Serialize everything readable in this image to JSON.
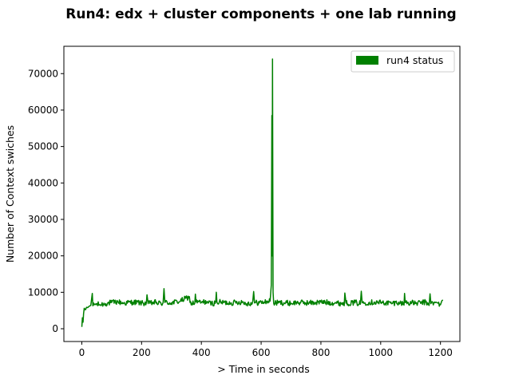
{
  "chart_data": {
    "type": "line",
    "title": "Run4: edx + cluster components + one lab running",
    "xlabel": "> Time  in seconds",
    "ylabel": "Number of Context swiches",
    "xlim": [
      -60,
      1265
    ],
    "ylim": [
      -3500,
      77500
    ],
    "xticks": [
      0,
      200,
      400,
      600,
      800,
      1000,
      1200
    ],
    "yticks": [
      0,
      10000,
      20000,
      30000,
      40000,
      50000,
      60000,
      70000
    ],
    "grid": false,
    "legend_position": "top-right",
    "series": [
      {
        "name": "run4 status",
        "color": "#008000",
        "baseline": 7000,
        "x_range": [
          0,
          1208
        ],
        "points": [
          [
            0,
            500
          ],
          [
            2,
            3000
          ],
          [
            4,
            1800
          ],
          [
            6,
            4200
          ],
          [
            8,
            5600
          ],
          [
            12,
            5200
          ],
          [
            16,
            5900
          ],
          [
            20,
            5800
          ],
          [
            25,
            6200
          ],
          [
            30,
            6400
          ],
          [
            35,
            9700
          ],
          [
            37,
            6300
          ],
          [
            45,
            6800
          ],
          [
            60,
            6600
          ],
          [
            80,
            6900
          ],
          [
            100,
            7200
          ],
          [
            120,
            7400
          ],
          [
            140,
            7000
          ],
          [
            170,
            7300
          ],
          [
            200,
            7100
          ],
          [
            218,
            9300
          ],
          [
            222,
            6900
          ],
          [
            250,
            7300
          ],
          [
            275,
            11000
          ],
          [
            278,
            7200
          ],
          [
            300,
            7100
          ],
          [
            330,
            7600
          ],
          [
            360,
            8800
          ],
          [
            362,
            7200
          ],
          [
            380,
            9500
          ],
          [
            382,
            7400
          ],
          [
            400,
            7200
          ],
          [
            420,
            7500
          ],
          [
            450,
            10000
          ],
          [
            452,
            7300
          ],
          [
            500,
            7100
          ],
          [
            540,
            7400
          ],
          [
            575,
            10200
          ],
          [
            578,
            7100
          ],
          [
            610,
            7300
          ],
          [
            630,
            7600
          ],
          [
            634,
            12000
          ],
          [
            636,
            58500
          ],
          [
            637,
            20000
          ],
          [
            638,
            74000
          ],
          [
            640,
            10000
          ],
          [
            642,
            7000
          ],
          [
            660,
            7200
          ],
          [
            700,
            7000
          ],
          [
            720,
            7200
          ],
          [
            760,
            7100
          ],
          [
            800,
            7300
          ],
          [
            850,
            7100
          ],
          [
            880,
            9800
          ],
          [
            884,
            7000
          ],
          [
            920,
            7200
          ],
          [
            935,
            10300
          ],
          [
            938,
            7100
          ],
          [
            980,
            7300
          ],
          [
            1000,
            7200
          ],
          [
            1040,
            7000
          ],
          [
            1060,
            7300
          ],
          [
            1080,
            9700
          ],
          [
            1082,
            7200
          ],
          [
            1120,
            7000
          ],
          [
            1150,
            7300
          ],
          [
            1165,
            9600
          ],
          [
            1168,
            6900
          ],
          [
            1190,
            7100
          ],
          [
            1200,
            6600
          ],
          [
            1205,
            7700
          ],
          [
            1208,
            7900
          ]
        ]
      }
    ]
  }
}
